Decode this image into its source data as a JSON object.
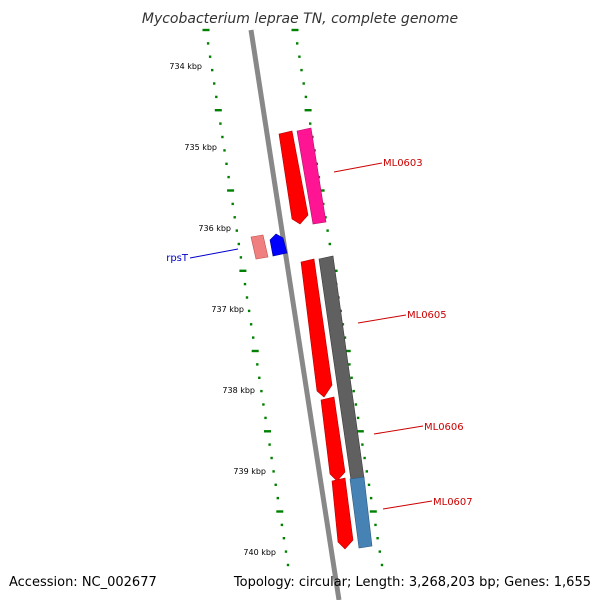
{
  "title": "Mycobacterium leprae TN, complete genome",
  "footer": {
    "accession": "Accession: NC_002677",
    "topology": "Topology: circular; Length: 3,268,203 bp; Genes: 1,655"
  },
  "ticks": [
    {
      "label": "734 kbp",
      "kbp": 734
    },
    {
      "label": "735 kbp",
      "kbp": 735
    },
    {
      "label": "736 kbp",
      "kbp": 736
    },
    {
      "label": "737 kbp",
      "kbp": 737
    },
    {
      "label": "738 kbp",
      "kbp": 738
    },
    {
      "label": "739 kbp",
      "kbp": 739
    },
    {
      "label": "740 kbp",
      "kbp": 740
    }
  ],
  "genes": [
    {
      "name": "ML0603",
      "color": "#cc0000"
    },
    {
      "name": "rpsT",
      "color": "#0000cc"
    },
    {
      "name": "ML0605",
      "color": "#cc0000"
    },
    {
      "name": "ML0606",
      "color": "#cc0000"
    },
    {
      "name": "ML0607",
      "color": "#cc0000"
    }
  ],
  "colors": {
    "backbone": "#888888",
    "tick": "#008000",
    "feature_red": "#ff0000",
    "feature_pink": "#ff1493",
    "feature_lightred": "#f08080",
    "feature_blue": "#0000ff",
    "feature_gray": "#555555",
    "feature_steelblue": "#4682b4"
  }
}
